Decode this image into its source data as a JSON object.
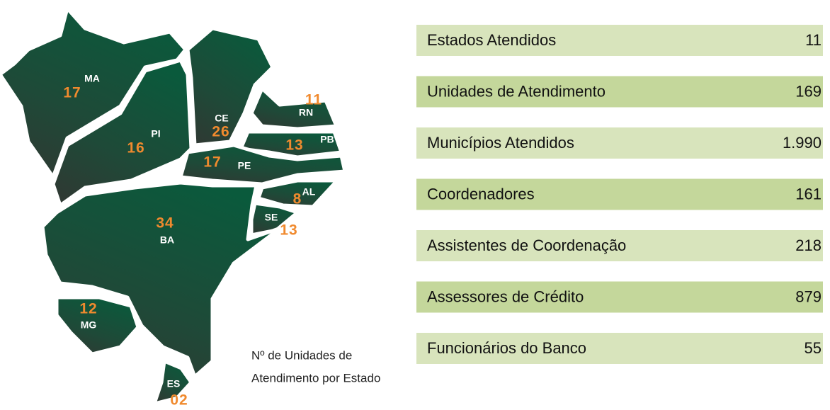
{
  "map": {
    "states": [
      {
        "label": "MA",
        "count": "17"
      },
      {
        "label": "PI",
        "count": "16"
      },
      {
        "label": "CE",
        "count": "26"
      },
      {
        "label": "RN",
        "count": "11"
      },
      {
        "label": "PB",
        "count": "13"
      },
      {
        "label": "PE",
        "count": "17"
      },
      {
        "label": "AL",
        "count": "8"
      },
      {
        "label": "SE",
        "count": "13"
      },
      {
        "label": "BA",
        "count": "34"
      },
      {
        "label": "MG",
        "count": "12"
      },
      {
        "label": "ES",
        "count": "02"
      }
    ],
    "caption": [
      "Nº de Unidades de",
      "Atendimento por Estado"
    ]
  },
  "table": {
    "rows": [
      [
        "Estados Atendidos",
        "11"
      ],
      [
        "Unidades de Atendimento",
        "169"
      ],
      [
        "Municípios Atendidos",
        "1.990"
      ],
      [
        "Coordenadores",
        "161"
      ],
      [
        "Assistentes de Coordenação",
        "218"
      ],
      [
        "Assessores de Crédito",
        "879"
      ],
      [
        "Funcionários do Banco",
        "55"
      ]
    ]
  }
}
